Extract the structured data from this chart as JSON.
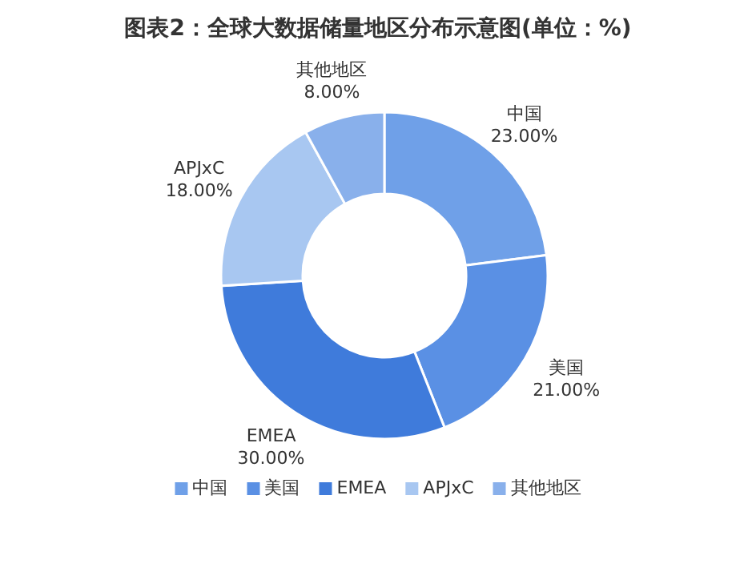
{
  "chart_data": {
    "type": "donut",
    "title": "图表2：全球大数据储量地区分布示意图(单位：%)",
    "categories": [
      "中国",
      "美国",
      "EMEA",
      "APJxC",
      "其他地区"
    ],
    "values": [
      23,
      21,
      30,
      18,
      8
    ],
    "value_labels": [
      "23.00%",
      "21.00%",
      "30.00%",
      "18.00%",
      "8.00%"
    ],
    "colors": [
      "#6fa0e8",
      "#5a90e4",
      "#3f7bdb",
      "#a8c7f1",
      "#89b0eb"
    ],
    "legend": "bottom"
  }
}
